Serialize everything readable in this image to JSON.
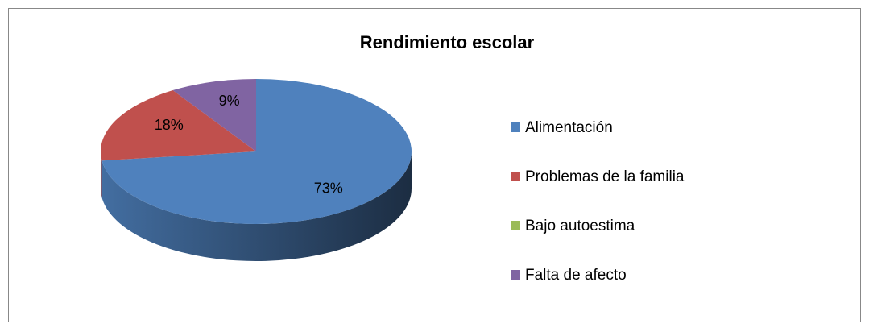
{
  "chart_data": {
    "type": "pie",
    "title": "Rendimiento escolar",
    "categories": [
      "Alimentación",
      "Problemas de la familia",
      "Bajo autoestima",
      "Falta de afecto"
    ],
    "values": [
      73,
      18,
      0,
      9
    ],
    "value_labels": [
      "73%",
      "18%",
      null,
      "9%"
    ],
    "colors": [
      "#4f81bd",
      "#c0504d",
      "#9bbb59",
      "#8064a2"
    ],
    "legend": "right"
  }
}
